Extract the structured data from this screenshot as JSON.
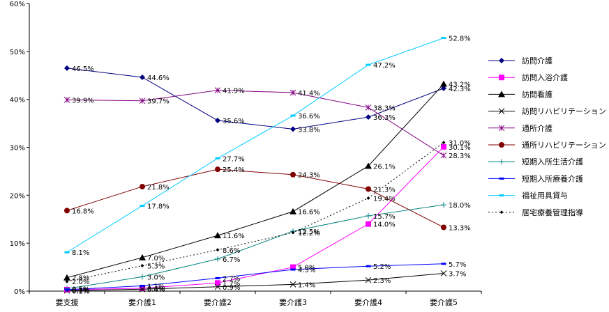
{
  "chart_data": {
    "type": "line",
    "title": "",
    "xlabel": "",
    "ylabel": "",
    "categories": [
      "要支援",
      "要介護1",
      "要介護2",
      "要介護3",
      "要介護4",
      "要介護5"
    ],
    "y_ticks": [
      "0%",
      "10%",
      "20%",
      "30%",
      "40%",
      "50%",
      "60%"
    ],
    "ylim": [
      0,
      60
    ],
    "grid": false,
    "legend_position": "right",
    "series": [
      {
        "name": "訪問介護",
        "color": "#000080",
        "marker": "diamond",
        "dash": "solid",
        "values": [
          46.5,
          44.6,
          35.6,
          33.8,
          36.3,
          42.3
        ],
        "labels": [
          "46.5%",
          "44.6%",
          "35.6%",
          "33.8%",
          "36.3%",
          "42.3%"
        ]
      },
      {
        "name": "訪問入浴介護",
        "color": "#ff00ff",
        "marker": "square",
        "dash": "solid",
        "values": [
          0.3,
          0.6,
          1.7,
          5.0,
          14.0,
          30.1
        ],
        "labels": [
          "0.3%",
          "0.6%",
          "1.7%",
          "5.0%",
          "14.0%",
          "30.1%"
        ]
      },
      {
        "name": "訪問看護",
        "color": "#000000",
        "marker": "triangle",
        "dash": "solid",
        "values": [
          2.8,
          7.0,
          11.6,
          16.6,
          26.1,
          43.2
        ],
        "labels": [
          "2.8%",
          "7.0%",
          "11.6%",
          "16.6%",
          "26.1%",
          "43.2%"
        ]
      },
      {
        "name": "訪問リハビリテーション",
        "color": "#000000",
        "marker": "cross",
        "dash": "solid",
        "values": [
          0.1,
          0.4,
          0.9,
          1.4,
          2.3,
          3.7
        ],
        "labels": [
          "0.1%",
          "0.4%",
          "0.9%",
          "1.4%",
          "2.3%",
          "3.7%"
        ]
      },
      {
        "name": "通所介護",
        "color": "#800080",
        "marker": "star",
        "dash": "solid",
        "values": [
          39.9,
          39.7,
          41.9,
          41.4,
          38.3,
          28.3
        ],
        "labels": [
          "39.9%",
          "39.7%",
          "41.9%",
          "41.4%",
          "38.3%",
          "28.3%"
        ]
      },
      {
        "name": "通所リハビリテーション",
        "color": "#800000",
        "marker": "circle",
        "dash": "solid",
        "values": [
          16.8,
          21.8,
          25.4,
          24.3,
          21.3,
          13.3
        ],
        "labels": [
          "16.8%",
          "21.8%",
          "25.4%",
          "24.3%",
          "21.3%",
          "13.3%"
        ]
      },
      {
        "name": "短期入所生活介護",
        "color": "#008080",
        "marker": "plus",
        "dash": "solid",
        "values": [
          0.5,
          3.0,
          6.7,
          12.5,
          15.7,
          18.0
        ],
        "labels": [
          "0.5%",
          "3.0%",
          "6.7%",
          "12.5%",
          "15.7%",
          "18.0%"
        ]
      },
      {
        "name": "短期入所療養介護",
        "color": "#0000ff",
        "marker": "dash",
        "dash": "solid",
        "values": [
          0.3,
          1.1,
          2.7,
          4.5,
          5.2,
          5.7
        ],
        "labels": [
          "0.3%",
          "1.1%",
          "2.7%",
          "4.5%",
          "5.2%",
          "5.7%"
        ]
      },
      {
        "name": "福祉用具貸与",
        "color": "#00ccff",
        "marker": "dash",
        "dash": "solid",
        "values": [
          8.1,
          17.8,
          27.7,
          36.6,
          47.2,
          52.8
        ],
        "labels": [
          "8.1%",
          "17.8%",
          "27.7%",
          "36.6%",
          "47.2%",
          "52.8%"
        ]
      },
      {
        "name": "居宅療養管理指導",
        "color": "#000000",
        "marker": "smalldiamond",
        "dash": "dotted",
        "values": [
          2.0,
          5.3,
          8.6,
          12.2,
          19.4,
          31.0
        ],
        "labels": [
          "2.0%",
          "5.3%",
          "8.6%",
          "12.2%",
          "19.4%",
          "31.0%"
        ]
      }
    ]
  }
}
